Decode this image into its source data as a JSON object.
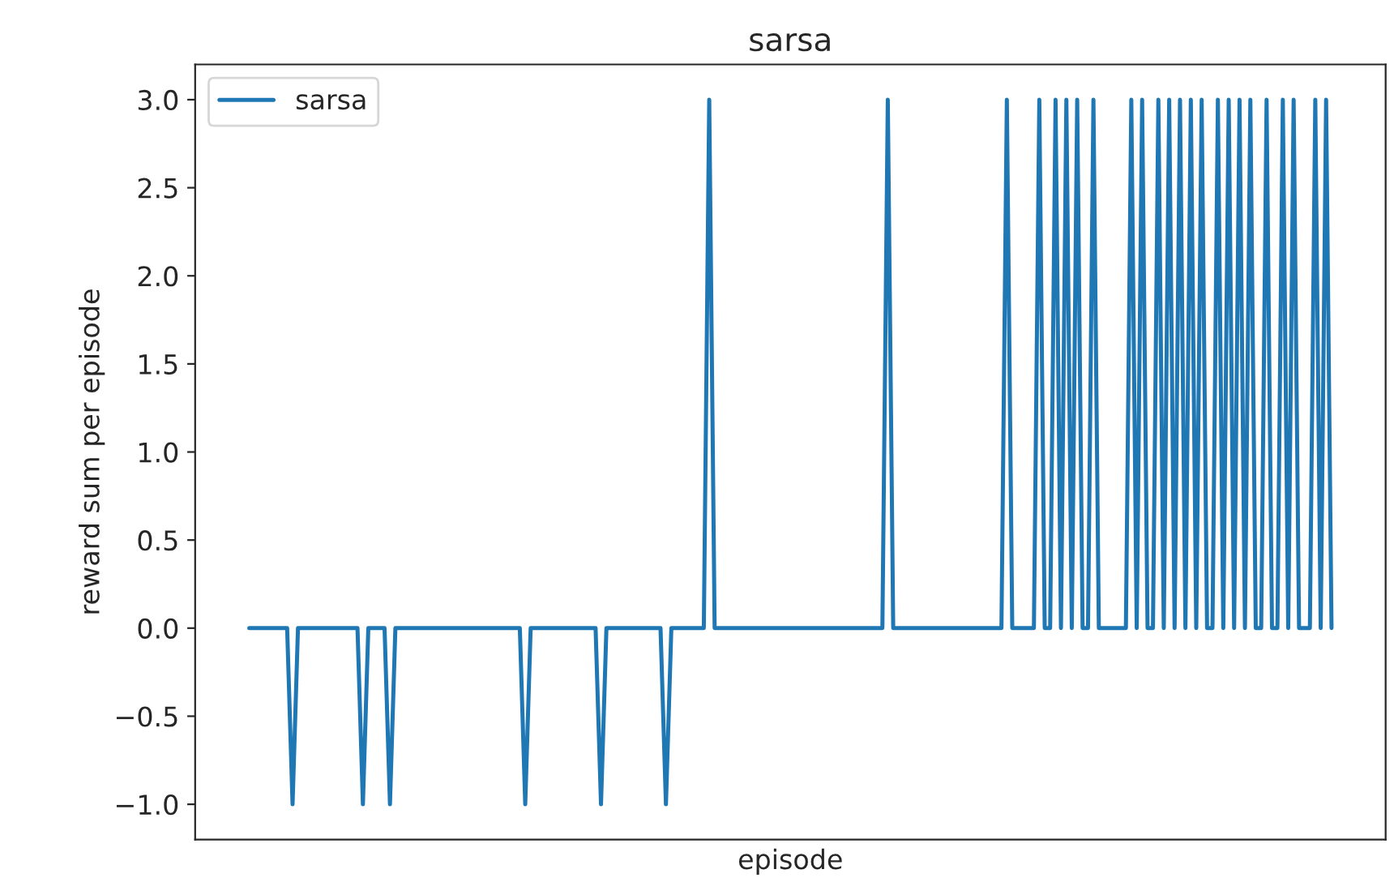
{
  "chart_data": {
    "type": "line",
    "title": "sarsa",
    "xlabel": "episode",
    "ylabel": "reward sum per episode",
    "categories": [
      null,
      null,
      null,
      null,
      null,
      null,
      null,
      null,
      null,
      null,
      null,
      null,
      null,
      null,
      null,
      null,
      null,
      null,
      null,
      null,
      null,
      null,
      null,
      null,
      null,
      null,
      null,
      null,
      null,
      null,
      null,
      null,
      null,
      null,
      null,
      null,
      null,
      null,
      null,
      null,
      null,
      null,
      null,
      null,
      null,
      null,
      null,
      null,
      null,
      null,
      null,
      null,
      null,
      null,
      null,
      null,
      null,
      null,
      null,
      null,
      null,
      null,
      null,
      null,
      null,
      null,
      null,
      null,
      null,
      null,
      null,
      null,
      null,
      null,
      null,
      null,
      null,
      null,
      null,
      null,
      null,
      null,
      null,
      null,
      null,
      null,
      null,
      null,
      null,
      null,
      null,
      null,
      null,
      null,
      null,
      null,
      null,
      null,
      null,
      null,
      null,
      null,
      null,
      null,
      null,
      null,
      null,
      null,
      null,
      null,
      null,
      null,
      null,
      null,
      null,
      null,
      null,
      null,
      null,
      null,
      null,
      null,
      null,
      null,
      null,
      null,
      null,
      null,
      null,
      null,
      null,
      null,
      null,
      null,
      null,
      null,
      null,
      null,
      null,
      null,
      null,
      null,
      null,
      null,
      null,
      null,
      null,
      null,
      null,
      null,
      null,
      null,
      null,
      null,
      null,
      null,
      null,
      null,
      null,
      null,
      null,
      null,
      null,
      null,
      null,
      null,
      null,
      null,
      null,
      null,
      null,
      null,
      null,
      null,
      null,
      null,
      null,
      null,
      null,
      null,
      null,
      null,
      null,
      null,
      null,
      null,
      null,
      null,
      null,
      null,
      null,
      null,
      null,
      null,
      null,
      null,
      null,
      null,
      null,
      null,
      null
    ],
    "series": [
      {
        "name": "sarsa",
        "color": "#1f77b4",
        "values": [
          0,
          0,
          0,
          0,
          0,
          0,
          0,
          0,
          -1,
          0,
          0,
          0,
          0,
          0,
          0,
          0,
          0,
          0,
          0,
          0,
          0,
          -1,
          0,
          0,
          0,
          0,
          -1,
          0,
          0,
          0,
          0,
          0,
          0,
          0,
          0,
          0,
          0,
          0,
          0,
          0,
          0,
          0,
          0,
          0,
          0,
          0,
          0,
          0,
          0,
          0,
          0,
          -1,
          0,
          0,
          0,
          0,
          0,
          0,
          0,
          0,
          0,
          0,
          0,
          0,
          0,
          -1,
          0,
          0,
          0,
          0,
          0,
          0,
          0,
          0,
          0,
          0,
          0,
          -1,
          0,
          0,
          0,
          0,
          0,
          0,
          0,
          3,
          0,
          0,
          0,
          0,
          0,
          0,
          0,
          0,
          0,
          0,
          0,
          0,
          0,
          0,
          0,
          0,
          0,
          0,
          0,
          0,
          0,
          0,
          0,
          0,
          0,
          0,
          0,
          0,
          0,
          0,
          0,
          0,
          3,
          0,
          0,
          0,
          0,
          0,
          0,
          0,
          0,
          0,
          0,
          0,
          0,
          0,
          0,
          0,
          0,
          0,
          0,
          0,
          0,
          0,
          3,
          0,
          0,
          0,
          0,
          0,
          3,
          0,
          0,
          3,
          0,
          3,
          0,
          3,
          0,
          0,
          3,
          0,
          0,
          0,
          0,
          0,
          0,
          3,
          0,
          3,
          0,
          0,
          3,
          0,
          3,
          0,
          3,
          0,
          3,
          0,
          3,
          0,
          0,
          3,
          0,
          3,
          0,
          3,
          0,
          3,
          0,
          0,
          3,
          0,
          0,
          3,
          0,
          3,
          0,
          0,
          0,
          3,
          0,
          3,
          0
        ]
      }
    ],
    "ylim": [
      -1.2,
      3.2
    ],
    "yticks": [
      {
        "value": -1.0,
        "label": "−1.0"
      },
      {
        "value": -0.5,
        "label": "−0.5"
      },
      {
        "value": 0.0,
        "label": "0.0"
      },
      {
        "value": 0.5,
        "label": "0.5"
      },
      {
        "value": 1.0,
        "label": "1.0"
      },
      {
        "value": 1.5,
        "label": "1.5"
      },
      {
        "value": 2.0,
        "label": "2.0"
      },
      {
        "value": 2.5,
        "label": "2.5"
      },
      {
        "value": 3.0,
        "label": "3.0"
      }
    ],
    "tick_labels": "y",
    "legend": "top left",
    "grid": false,
    "marker": "none",
    "line_style": "solid"
  }
}
